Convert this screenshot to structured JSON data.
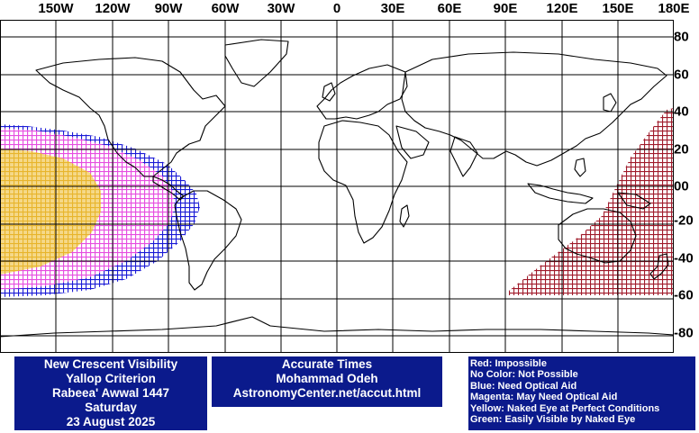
{
  "map": {
    "lon_labels": [
      "150W",
      "120W",
      "90W",
      "60W",
      "30W",
      "0",
      "30E",
      "60E",
      "90E",
      "120E",
      "150E",
      "180E"
    ],
    "lat_labels": [
      "80",
      "60",
      "40",
      "20",
      "00",
      "-20",
      "-40",
      "-60",
      "-80"
    ],
    "colors": {
      "ocean": "#ffffff",
      "grid": "#000000",
      "coast": "#000000",
      "impossible": "#a01b2b",
      "optical": "#1b1bd6",
      "magenta": "#e64fe0",
      "yellow": "#f2c648"
    }
  },
  "info": {
    "line1": "New Crescent Visibility",
    "line2": "Yallop Criterion",
    "line3": "Rabeea' Awwal 1447",
    "line4": "Saturday",
    "line5": "23 August 2025"
  },
  "credits": {
    "line1": "Accurate Times",
    "line2": "Mohammad Odeh",
    "line3": "AstronomyCenter.net/accut.html"
  },
  "legend": {
    "red": "Red: Impossible",
    "nocolor": "No Color: Not Possible",
    "blue": "Blue: Need Optical Aid",
    "magenta": "Magenta: May Need Optical Aid",
    "yellow": "Yellow: Naked Eye at Perfect Conditions",
    "green": "Green: Easily Visible by Naked Eye"
  }
}
